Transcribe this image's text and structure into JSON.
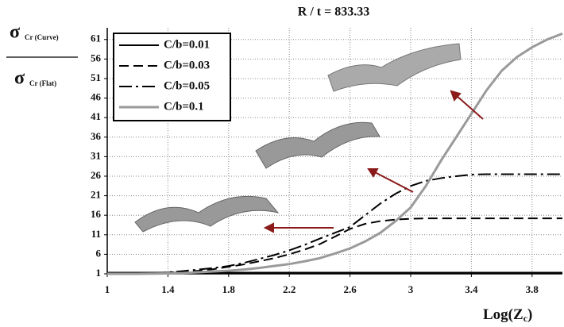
{
  "chart_data": {
    "type": "line",
    "title": "R / t = 833.33",
    "y_label": {
      "top": "σ",
      "top_sub": "Cr (Curve)",
      "bottom": "σ",
      "bottom_sub": "Cr (Flat)"
    },
    "x_label": [
      "Log(Z",
      "c",
      ")"
    ],
    "x": [
      1.0,
      1.1,
      1.2,
      1.3,
      1.4,
      1.5,
      1.6,
      1.7,
      1.8,
      1.9,
      2.0,
      2.1,
      2.2,
      2.3,
      2.4,
      2.5,
      2.6,
      2.7,
      2.8,
      2.9,
      3.0,
      3.1,
      3.2,
      3.3,
      3.4,
      3.5,
      3.6,
      3.7,
      3.8,
      3.9,
      4.0
    ],
    "series": [
      {
        "name": "C/b=0.01",
        "color": "#000000",
        "dash": "solid",
        "values": [
          1.3,
          1.3,
          1.3,
          1.3,
          1.3,
          1.3,
          1.3,
          1.3,
          1.3,
          1.3,
          1.3,
          1.3,
          1.3,
          1.3,
          1.3,
          1.3,
          1.3,
          1.3,
          1.3,
          1.3,
          1.3,
          1.3,
          1.3,
          1.3,
          1.3,
          1.3,
          1.3,
          1.3,
          1.3,
          1.3,
          1.3
        ]
      },
      {
        "name": "C/b=0.03",
        "color": "#000000",
        "dash": "dashed",
        "values": [
          1,
          1,
          1.05,
          1.1,
          1.3,
          1.5,
          1.8,
          2.2,
          2.8,
          3.4,
          4.2,
          5,
          6,
          7.2,
          8.6,
          10.5,
          12.5,
          13.8,
          14.5,
          14.9,
          15.1,
          15.2,
          15.2,
          15.2,
          15.2,
          15.2,
          15.2,
          15.2,
          15.2,
          15.2,
          15.2
        ]
      },
      {
        "name": "C/b=0.05",
        "color": "#000000",
        "dash": "dashdot",
        "values": [
          1,
          1,
          1.05,
          1.15,
          1.4,
          1.7,
          2.1,
          2.5,
          3,
          3.8,
          4.8,
          5.8,
          7,
          8.4,
          10,
          11.5,
          13,
          16,
          19,
          21.5,
          23.5,
          24.8,
          25.5,
          26,
          26.4,
          26.5,
          26.5,
          26.5,
          26.5,
          26.5,
          26.5
        ]
      },
      {
        "name": "C/b=0.1",
        "color": "#9a9a9a",
        "dash": "solid",
        "values": [
          1,
          1,
          1,
          1.05,
          1.1,
          1.2,
          1.4,
          1.6,
          1.8,
          2.1,
          2.5,
          3,
          3.5,
          4.2,
          5,
          6.2,
          7.5,
          9.3,
          11.5,
          14.5,
          18,
          23.5,
          30,
          36,
          42,
          48,
          53,
          56.5,
          59,
          61,
          62.5
        ]
      }
    ],
    "xlim": [
      1,
      4
    ],
    "ylim": [
      1,
      64
    ],
    "xticks": [
      1,
      1.4,
      1.8,
      2.2,
      2.6,
      3,
      3.4,
      3.8
    ],
    "yticks": [
      1,
      6,
      11,
      16,
      21,
      26,
      31,
      36,
      41,
      46,
      51,
      56,
      61
    ],
    "grid": true,
    "legend": "upper-left"
  }
}
